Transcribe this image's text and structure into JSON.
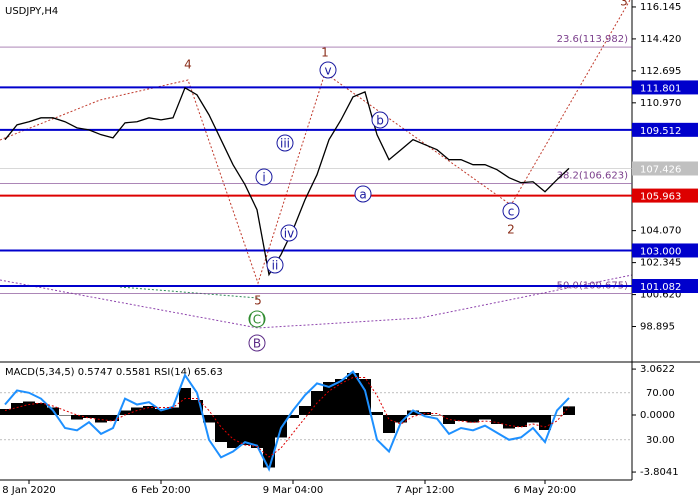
{
  "chart_data": [
    {
      "type": "line",
      "title": "USDJPY,H4",
      "categories": [
        null,
        null,
        "8 Jan 2020",
        null,
        null,
        null,
        null,
        null,
        null,
        null,
        null,
        null,
        null,
        "6 Feb 20:00",
        null,
        null,
        null,
        null,
        null,
        null,
        null,
        null,
        null,
        null,
        "9 Mar 04:00",
        null,
        null,
        null,
        null,
        null,
        null,
        null,
        null,
        null,
        null,
        "7 Apr 12:00",
        null,
        null,
        null,
        null,
        null,
        null,
        null,
        null,
        null,
        "6 May 20:00",
        null,
        null,
        null,
        null,
        null,
        null,
        null
      ],
      "values": [
        108.98,
        109.78,
        109.95,
        110.16,
        110.16,
        109.95,
        109.62,
        109.51,
        109.25,
        109.08,
        109.89,
        109.95,
        110.16,
        110.05,
        110.16,
        111.78,
        111.4,
        110.32,
        108.98,
        107.63,
        106.55,
        105.2,
        101.7,
        102.78,
        104.12,
        105.74,
        107.09,
        108.98,
        110.05,
        111.29,
        111.56,
        109.25,
        107.9,
        108.44,
        108.98,
        108.71,
        108.44,
        107.9,
        107.9,
        107.63,
        107.63,
        107.36,
        106.93,
        106.66,
        106.71,
        106.17,
        106.82,
        107.43,
        null,
        null,
        null,
        null,
        null
      ],
      "color": "#000000",
      "ylim": [
        96.98,
        116.52
      ],
      "yticks": [
        98.895,
        {
          "value": 100.62,
          "label": "100.620"
        },
        102.345,
        {
          "value": 104.07,
          "label": "104.070"
        },
        {
          "value": 110.97,
          "label": "110.970"
        },
        112.695,
        {
          "value": 114.42,
          "label": "114.420"
        },
        116.145
      ],
      "levels": [
        {
          "value": 111.801,
          "color": "#0000cc"
        },
        {
          "value": 109.512,
          "color": "#0000cc"
        },
        {
          "value": 107.426,
          "color": "#c0c0c0"
        },
        {
          "value": 105.963,
          "color": "#dd0000"
        },
        {
          "value": 103,
          "label": "103.000",
          "color": "#0000cc"
        },
        {
          "value": 101.082,
          "color": "#0000cc"
        }
      ],
      "fib_levels": [
        {
          "value": 113.982,
          "label": "23.6(113.982)"
        },
        {
          "value": 106.623,
          "label": "38.2(106.623)"
        },
        {
          "value": 100.675,
          "label": "50.0(100.675)"
        }
      ],
      "annotations": [
        "4",
        "1",
        "5",
        "(C)",
        "B",
        "2",
        "3",
        "i",
        "ii",
        "iii",
        "iv",
        "v",
        "a",
        "b",
        "c"
      ]
    },
    {
      "type": "macd",
      "title": "MACD(5,34,5) 0.5747 0.5581 RSI(14) 65.63",
      "histogram": {
        "color": "#000000",
        "values": [
          0.4,
          0.8,
          0.9,
          0.8,
          0.5,
          0.0,
          -0.3,
          -0.2,
          -0.5,
          -0.4,
          0.3,
          0.5,
          0.6,
          0.4,
          0.5,
          1.8,
          1.0,
          -0.5,
          -1.8,
          -2.2,
          -2.0,
          -2.2,
          -3.5,
          -1.5,
          -0.2,
          0.6,
          1.6,
          2.2,
          2.4,
          2.8,
          2.4,
          0.2,
          -1.2,
          -0.5,
          0.3,
          0.2,
          0.0,
          -0.6,
          -0.4,
          -0.5,
          -0.3,
          -0.6,
          -0.9,
          -0.8,
          -0.5,
          -1.0,
          0.0,
          0.5747
        ]
      },
      "signal": {
        "color": "#dd0000",
        "values": [
          0.3,
          0.5,
          0.7,
          0.8,
          0.6,
          0.3,
          0.0,
          -0.2,
          -0.3,
          -0.4,
          0.0,
          0.3,
          0.5,
          0.5,
          0.5,
          1.1,
          1.1,
          0.3,
          -0.8,
          -1.6,
          -2.0,
          -2.1,
          -2.8,
          -2.2,
          -1.2,
          -0.2,
          0.8,
          1.6,
          2.1,
          2.5,
          2.5,
          1.3,
          -0.3,
          -0.6,
          -0.1,
          0.1,
          0.1,
          -0.3,
          -0.4,
          -0.5,
          -0.4,
          -0.5,
          -0.7,
          -0.8,
          -0.6,
          -0.8,
          -0.4,
          0.5581
        ]
      },
      "rsi": {
        "color": "#1e90ff",
        "axis": "y2",
        "values": [
          60,
          72,
          70,
          65,
          55,
          40,
          38,
          45,
          35,
          40,
          65,
          60,
          62,
          55,
          58,
          85,
          70,
          30,
          15,
          20,
          28,
          25,
          5,
          40,
          55,
          68,
          78,
          75,
          80,
          88,
          72,
          30,
          20,
          45,
          55,
          50,
          48,
          35,
          40,
          38,
          42,
          36,
          30,
          32,
          40,
          28,
          55,
          65.63
        ]
      },
      "ylim": [
        -4.2,
        3.4
      ],
      "yticks": [
        3.0622,
        {
          "value": 0,
          "label": "0.0000"
        },
        -3.8041
      ],
      "y2lim": [
        -2.55,
        94.5
      ],
      "y2ticks": [
        {
          "value": 70,
          "label": "70.00"
        },
        {
          "value": 30,
          "label": "30.00"
        }
      ]
    }
  ]
}
